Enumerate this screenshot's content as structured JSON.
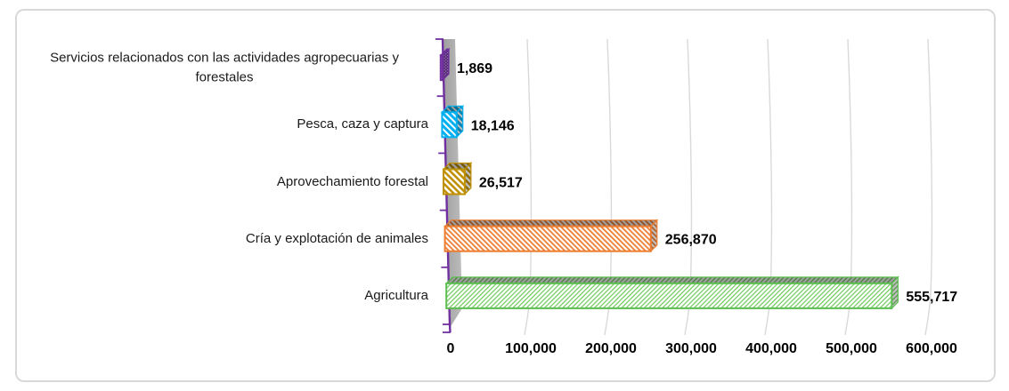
{
  "frame": {
    "border_color": "#D9D9D9",
    "background": "#FFFFFF"
  },
  "chart_data": {
    "type": "bar",
    "orientation": "horizontal",
    "title": "",
    "xlabel": "",
    "ylabel": "",
    "categories": [
      "Servicios relacionados con las actividades agropecuarias y forestales",
      "Pesca, caza y captura",
      "Aprovechamiento forestal",
      "Cría y explotación de animales",
      "Agricultura"
    ],
    "values": [
      1869,
      18146,
      26517,
      256870,
      555717
    ],
    "value_labels": [
      "1,869",
      "18,146",
      "26,517",
      "256,870",
      "555,717"
    ],
    "bar_colors": [
      "#7030A0",
      "#00B0F0",
      "#BF9000",
      "#ED7D31",
      "#5CBE51"
    ],
    "hatch_directions": [
      "cross",
      "down-diagonal",
      "down-diagonal",
      "down-diagonal",
      "up-diagonal"
    ],
    "xlim": [
      0,
      600000
    ],
    "x_tick_values": [
      0,
      100000,
      200000,
      300000,
      400000,
      500000,
      600000
    ],
    "x_tick_labels": [
      "0",
      "100,000",
      "200,000",
      "300,000",
      "400,000",
      "500,000",
      "600,000"
    ],
    "grid": "on",
    "gridline_color": "#D9D9D9",
    "axis_color": "#7030A0",
    "wall_color": "#A6A6A6",
    "label_color": "#000000",
    "effect": "3d-extruded-pattern-bars"
  }
}
